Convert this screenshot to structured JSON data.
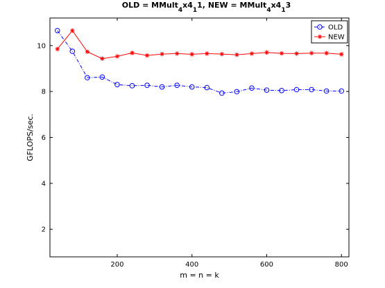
{
  "chart_data": {
    "type": "line",
    "title_parts": [
      {
        "text": "OLD = MMult",
        "sub": false
      },
      {
        "text": "4",
        "sub": true
      },
      {
        "text": "x4",
        "sub": false
      },
      {
        "text": "1",
        "sub": true
      },
      {
        "text": "1, NEW = MMult",
        "sub": false
      },
      {
        "text": "4",
        "sub": true
      },
      {
        "text": "x4",
        "sub": false
      },
      {
        "text": "1",
        "sub": true
      },
      {
        "text": "3",
        "sub": false
      }
    ],
    "xlabel": "m = n = k",
    "ylabel": "GFLOPS/sec.",
    "xlim": [
      20,
      820
    ],
    "ylim": [
      0.8,
      11.2
    ],
    "xticks": [
      200,
      400,
      600,
      800
    ],
    "yticks": [
      2,
      4,
      6,
      8,
      10
    ],
    "x": [
      40,
      80,
      120,
      160,
      200,
      240,
      280,
      320,
      360,
      400,
      440,
      480,
      520,
      560,
      600,
      640,
      680,
      720,
      760,
      800
    ],
    "series": [
      {
        "name": "OLD",
        "color": "#0000ff",
        "marker": "circle",
        "linestyle": "dashdot",
        "values": [
          10.65,
          9.75,
          8.6,
          8.63,
          8.3,
          8.25,
          8.27,
          8.2,
          8.27,
          8.2,
          8.17,
          7.93,
          7.99,
          8.15,
          8.06,
          8.04,
          8.08,
          8.08,
          8.02,
          8.02
        ]
      },
      {
        "name": "NEW",
        "color": "#ff0000",
        "marker": "star",
        "linestyle": "solid",
        "values": [
          9.85,
          10.65,
          9.73,
          9.43,
          9.53,
          9.68,
          9.57,
          9.63,
          9.65,
          9.62,
          9.65,
          9.63,
          9.6,
          9.65,
          9.7,
          9.66,
          9.65,
          9.67,
          9.67,
          9.62
        ]
      }
    ],
    "legend": "top-right",
    "grid": false
  }
}
